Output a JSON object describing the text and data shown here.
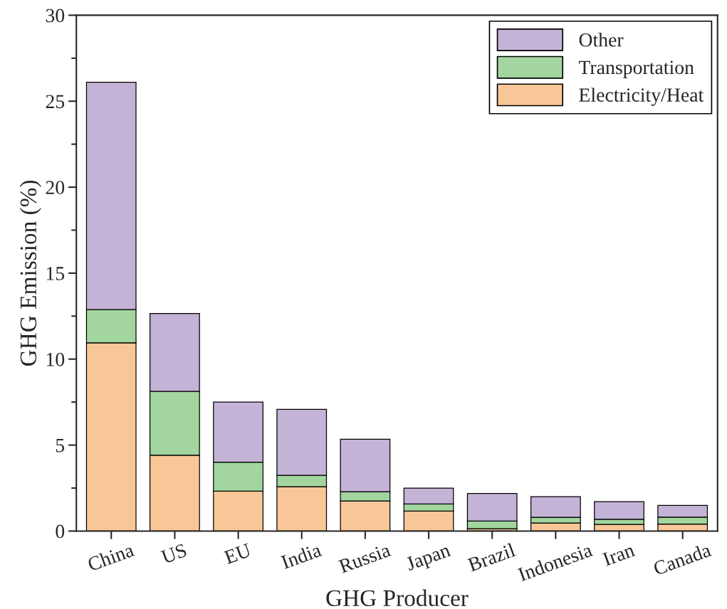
{
  "chart_data": {
    "type": "bar",
    "stacked": true,
    "xlabel": "GHG Producer",
    "ylabel": "GHG Emission (%)",
    "categories": [
      "China",
      "US",
      "EU",
      "India",
      "Russia",
      "Japan",
      "Brazil",
      "Indonesia",
      "Iran",
      "Canada"
    ],
    "series": [
      {
        "name": "Electricity/Heat",
        "color": "#f9c797",
        "values": [
          10.95,
          4.41,
          2.32,
          2.58,
          1.75,
          1.16,
          0.14,
          0.47,
          0.38,
          0.41
        ]
      },
      {
        "name": "Transportation",
        "color": "#a2d69e",
        "values": [
          1.93,
          3.71,
          1.69,
          0.66,
          0.54,
          0.41,
          0.44,
          0.33,
          0.31,
          0.4
        ]
      },
      {
        "name": "Other",
        "color": "#c3b3d6",
        "values": [
          13.22,
          4.53,
          3.49,
          3.84,
          3.05,
          0.93,
          1.6,
          1.2,
          1.02,
          0.68
        ]
      }
    ],
    "ylim": [
      0,
      30
    ],
    "yticks": [
      0,
      5,
      10,
      15,
      20,
      25,
      30
    ],
    "grid": false,
    "legend": "top right"
  }
}
